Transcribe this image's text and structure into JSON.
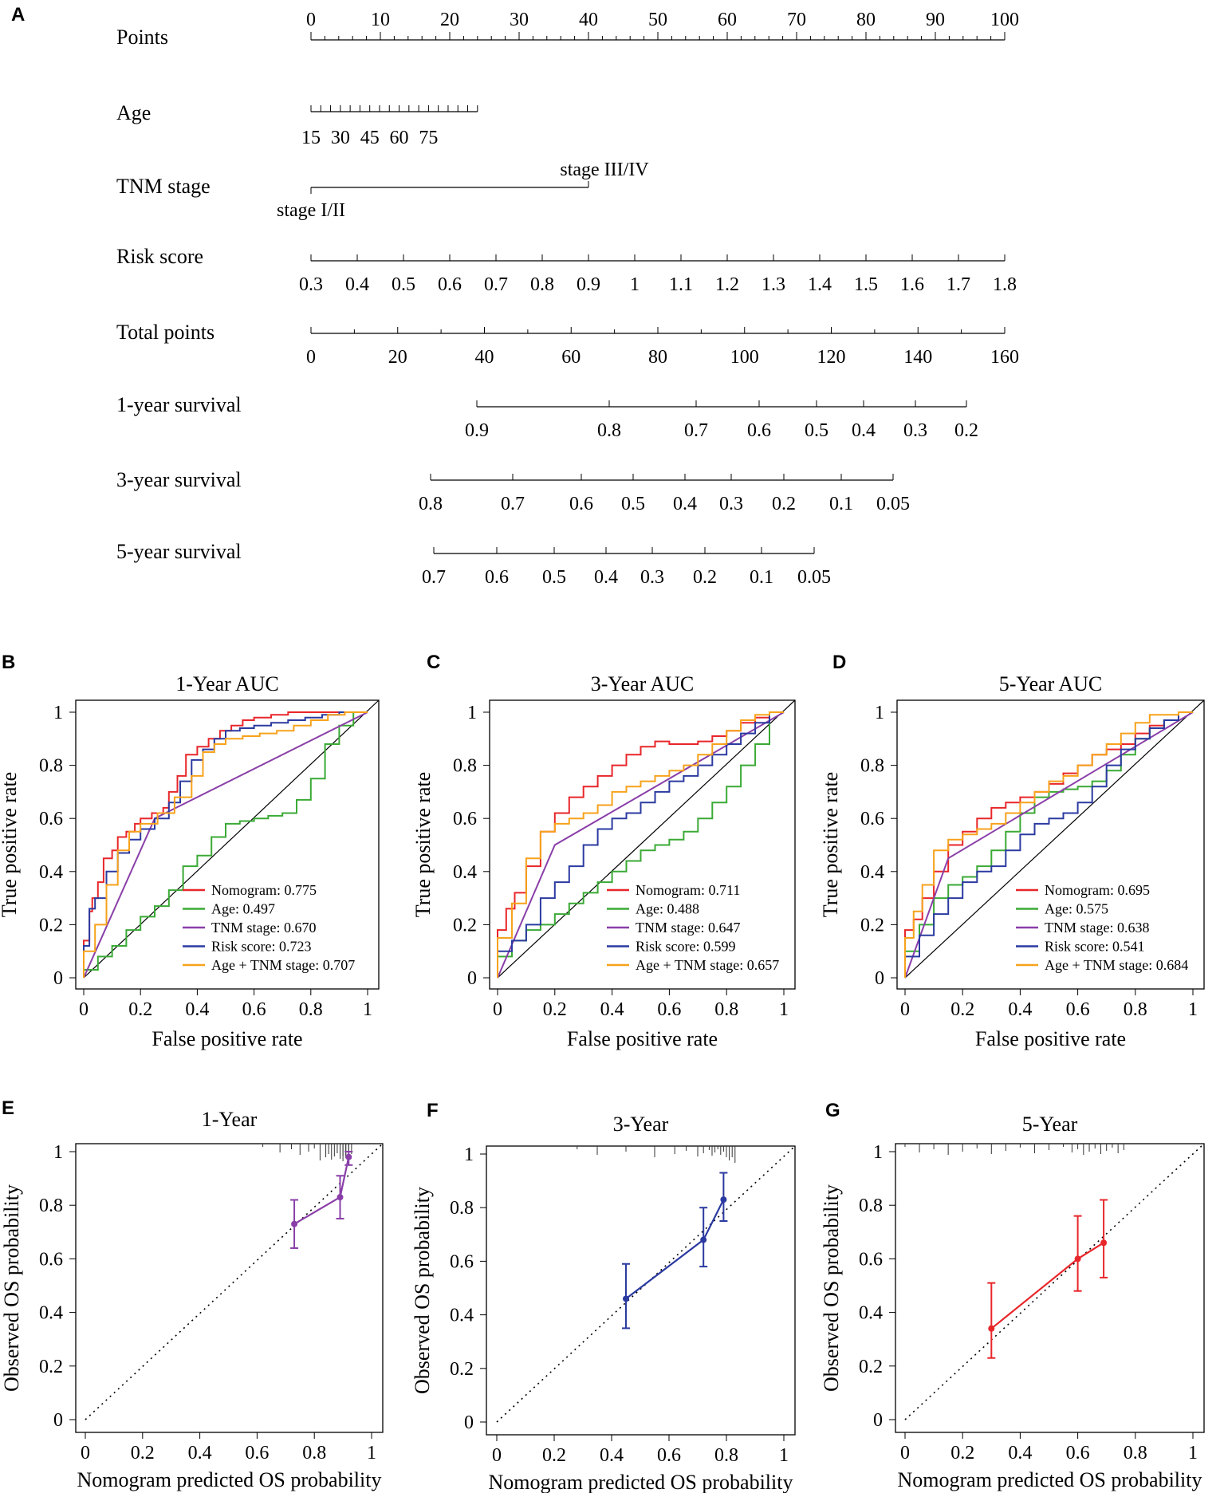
{
  "panel_labels": {
    "A": "A",
    "B": "B",
    "C": "C",
    "D": "D",
    "E": "E",
    "F": "F",
    "G": "G"
  },
  "nomogram": {
    "rows": [
      {
        "name": "Points",
        "ticks": [
          "0",
          "10",
          "20",
          "30",
          "40",
          "50",
          "60",
          "70",
          "80",
          "90",
          "100"
        ],
        "values": [
          0,
          10,
          20,
          30,
          40,
          50,
          60,
          70,
          80,
          90,
          100
        ]
      },
      {
        "name": "Age",
        "ticks": [
          "15",
          "30",
          "45",
          "60",
          "75"
        ],
        "values": [
          15,
          30,
          45,
          60,
          75
        ],
        "range": [
          15,
          100
        ]
      },
      {
        "name": "TNM stage",
        "levels": [
          "stage I/II",
          "stage III/IV"
        ],
        "points": [
          0,
          40
        ]
      },
      {
        "name": "Risk score",
        "ticks": [
          "0.3",
          "0.4",
          "0.5",
          "0.6",
          "0.7",
          "0.8",
          "0.9",
          "1",
          "1.1",
          "1.2",
          "1.3",
          "1.4",
          "1.5",
          "1.6",
          "1.7",
          "1.8"
        ],
        "values": [
          0.3,
          0.4,
          0.5,
          0.6,
          0.7,
          0.8,
          0.9,
          1.0,
          1.1,
          1.2,
          1.3,
          1.4,
          1.5,
          1.6,
          1.7,
          1.8
        ]
      },
      {
        "name": "Total points",
        "ticks": [
          "0",
          "20",
          "40",
          "60",
          "80",
          "100",
          "120",
          "140",
          "160"
        ],
        "values": [
          0,
          20,
          40,
          60,
          80,
          100,
          120,
          140,
          160
        ]
      },
      {
        "name": "1-year survival",
        "ticks": [
          "0.9",
          "0.8",
          "0.7",
          "0.6",
          "0.5",
          "0.4",
          "0.3",
          "0.2"
        ],
        "values": [
          0.9,
          0.8,
          0.7,
          0.6,
          0.5,
          0.4,
          0.3,
          0.2
        ]
      },
      {
        "name": "3-year survival",
        "ticks": [
          "0.8",
          "0.7",
          "0.6",
          "0.5",
          "0.4",
          "0.3",
          "0.2",
          "0.1",
          "0.05"
        ],
        "values": [
          0.8,
          0.7,
          0.6,
          0.5,
          0.4,
          0.3,
          0.2,
          0.1,
          0.05
        ]
      },
      {
        "name": "5-year survival",
        "ticks": [
          "0.7",
          "0.6",
          "0.5",
          "0.4",
          "0.3",
          "0.2",
          "0.1",
          "0.05"
        ],
        "values": [
          0.7,
          0.6,
          0.5,
          0.4,
          0.3,
          0.2,
          0.1,
          0.05
        ]
      }
    ]
  },
  "chart_data": [
    {
      "type": "line",
      "panel": "B",
      "title": "1-Year AUC",
      "xlabel": "False positive rate",
      "ylabel": "True positive rate",
      "xlim": [
        0,
        1
      ],
      "ylim": [
        0,
        1
      ],
      "xticks": [
        "0",
        "0.2",
        "0.4",
        "0.6",
        "0.8",
        "1"
      ],
      "yticks": [
        "0",
        "0.2",
        "0.4",
        "0.6",
        "0.8",
        "1"
      ],
      "legend_position": "bottom-right",
      "series": [
        {
          "name": "Nomogram",
          "label": "Nomogram: 0.775",
          "auc": 0.775,
          "color": "#e8262a",
          "x": [
            0,
            0.02,
            0.03,
            0.05,
            0.07,
            0.1,
            0.12,
            0.15,
            0.18,
            0.2,
            0.24,
            0.28,
            0.3,
            0.33,
            0.36,
            0.4,
            0.44,
            0.48,
            0.52,
            0.56,
            0.6,
            0.66,
            0.72,
            0.78,
            0.84,
            0.9,
            0.95,
            1
          ],
          "y": [
            0,
            0.14,
            0.25,
            0.3,
            0.36,
            0.45,
            0.48,
            0.53,
            0.55,
            0.58,
            0.6,
            0.62,
            0.64,
            0.7,
            0.76,
            0.84,
            0.87,
            0.9,
            0.93,
            0.95,
            0.97,
            0.98,
            0.99,
            1,
            1,
            1,
            1,
            1
          ]
        },
        {
          "name": "Age",
          "label": "Age: 0.497",
          "auc": 0.497,
          "color": "#3aaa35",
          "x": [
            0,
            0.05,
            0.1,
            0.15,
            0.2,
            0.25,
            0.3,
            0.35,
            0.4,
            0.45,
            0.5,
            0.55,
            0.6,
            0.65,
            0.7,
            0.75,
            0.8,
            0.85,
            0.9,
            0.95,
            1
          ],
          "y": [
            0,
            0.03,
            0.08,
            0.12,
            0.18,
            0.23,
            0.27,
            0.33,
            0.42,
            0.46,
            0.53,
            0.58,
            0.59,
            0.6,
            0.61,
            0.62,
            0.67,
            0.75,
            0.88,
            0.95,
            1
          ]
        },
        {
          "name": "TNM stage",
          "label": "TNM stage: 0.670",
          "auc": 0.67,
          "color": "#8a3fa8",
          "x": [
            0,
            0.25,
            1
          ],
          "y": [
            0,
            0.6,
            1
          ]
        },
        {
          "name": "Risk score",
          "label": "Risk score: 0.723",
          "auc": 0.723,
          "color": "#2b3aa0",
          "x": [
            0,
            0.02,
            0.04,
            0.08,
            0.12,
            0.16,
            0.2,
            0.25,
            0.3,
            0.34,
            0.38,
            0.42,
            0.46,
            0.5,
            0.55,
            0.6,
            0.66,
            0.72,
            0.78,
            0.84,
            0.9,
            0.95,
            1
          ],
          "y": [
            0,
            0.12,
            0.26,
            0.3,
            0.4,
            0.47,
            0.52,
            0.56,
            0.6,
            0.66,
            0.74,
            0.82,
            0.86,
            0.9,
            0.93,
            0.94,
            0.95,
            0.96,
            0.97,
            0.98,
            0.99,
            1,
            1
          ]
        },
        {
          "name": "Age + TNM stage",
          "label": "Age + TNM stage: 0.707",
          "auc": 0.707,
          "color": "#f7a21b",
          "x": [
            0,
            0.04,
            0.08,
            0.12,
            0.16,
            0.2,
            0.26,
            0.32,
            0.38,
            0.42,
            0.46,
            0.5,
            0.56,
            0.62,
            0.68,
            0.74,
            0.8,
            0.86,
            0.92,
            0.96,
            1
          ],
          "y": [
            0,
            0.1,
            0.2,
            0.35,
            0.48,
            0.55,
            0.58,
            0.62,
            0.68,
            0.76,
            0.85,
            0.88,
            0.9,
            0.91,
            0.92,
            0.93,
            0.95,
            0.97,
            0.99,
            1,
            1
          ]
        }
      ]
    },
    {
      "type": "line",
      "panel": "C",
      "title": "3-Year AUC",
      "xlabel": "False positive rate",
      "ylabel": "True positive rate",
      "xlim": [
        0,
        1
      ],
      "ylim": [
        0,
        1
      ],
      "xticks": [
        "0",
        "0.2",
        "0.4",
        "0.6",
        "0.8",
        "1"
      ],
      "yticks": [
        "0",
        "0.2",
        "0.4",
        "0.6",
        "0.8",
        "1"
      ],
      "legend_position": "bottom-right",
      "series": [
        {
          "name": "Nomogram",
          "label": "Nomogram: 0.711",
          "auc": 0.711,
          "color": "#e8262a",
          "x": [
            0,
            0.03,
            0.06,
            0.1,
            0.15,
            0.2,
            0.25,
            0.3,
            0.35,
            0.4,
            0.45,
            0.5,
            0.55,
            0.6,
            0.65,
            0.7,
            0.75,
            0.8,
            0.85,
            0.9,
            0.95,
            1
          ],
          "y": [
            0,
            0.18,
            0.26,
            0.32,
            0.42,
            0.55,
            0.62,
            0.68,
            0.72,
            0.76,
            0.8,
            0.84,
            0.87,
            0.89,
            0.88,
            0.88,
            0.89,
            0.91,
            0.93,
            0.96,
            0.98,
            1
          ]
        },
        {
          "name": "Age",
          "label": "Age: 0.488",
          "auc": 0.488,
          "color": "#3aaa35",
          "x": [
            0,
            0.05,
            0.1,
            0.15,
            0.2,
            0.25,
            0.3,
            0.35,
            0.4,
            0.45,
            0.5,
            0.55,
            0.6,
            0.65,
            0.7,
            0.75,
            0.8,
            0.85,
            0.9,
            0.95,
            1
          ],
          "y": [
            0,
            0.08,
            0.14,
            0.18,
            0.2,
            0.24,
            0.28,
            0.32,
            0.36,
            0.4,
            0.44,
            0.48,
            0.5,
            0.52,
            0.55,
            0.6,
            0.66,
            0.72,
            0.8,
            0.88,
            1
          ]
        },
        {
          "name": "TNM stage",
          "label": "TNM stage: 0.647",
          "auc": 0.647,
          "color": "#8a3fa8",
          "x": [
            0,
            0.2,
            1
          ],
          "y": [
            0,
            0.5,
            1
          ]
        },
        {
          "name": "Risk score",
          "label": "Risk score: 0.599",
          "auc": 0.599,
          "color": "#2b3aa0",
          "x": [
            0,
            0.05,
            0.1,
            0.15,
            0.2,
            0.25,
            0.3,
            0.35,
            0.4,
            0.45,
            0.5,
            0.55,
            0.6,
            0.65,
            0.7,
            0.75,
            0.8,
            0.85,
            0.9,
            0.95,
            1
          ],
          "y": [
            0,
            0.1,
            0.14,
            0.2,
            0.3,
            0.36,
            0.42,
            0.5,
            0.56,
            0.6,
            0.62,
            0.66,
            0.7,
            0.74,
            0.76,
            0.8,
            0.84,
            0.88,
            0.92,
            0.96,
            1
          ]
        },
        {
          "name": "Age + TNM stage",
          "label": "Age + TNM stage: 0.657",
          "auc": 0.657,
          "color": "#f7a21b",
          "x": [
            0,
            0.05,
            0.1,
            0.15,
            0.2,
            0.25,
            0.3,
            0.35,
            0.4,
            0.45,
            0.5,
            0.55,
            0.6,
            0.65,
            0.7,
            0.75,
            0.8,
            0.85,
            0.9,
            0.95,
            1
          ],
          "y": [
            0,
            0.15,
            0.28,
            0.45,
            0.55,
            0.58,
            0.6,
            0.62,
            0.65,
            0.7,
            0.72,
            0.74,
            0.76,
            0.78,
            0.8,
            0.84,
            0.88,
            0.93,
            0.97,
            0.99,
            1
          ]
        }
      ]
    },
    {
      "type": "line",
      "panel": "D",
      "title": "5-Year AUC",
      "xlabel": "False positive rate",
      "ylabel": "True positive rate",
      "xlim": [
        0,
        1
      ],
      "ylim": [
        0,
        1
      ],
      "xticks": [
        "0",
        "0.2",
        "0.4",
        "0.6",
        "0.8",
        "1"
      ],
      "yticks": [
        "0",
        "0.2",
        "0.4",
        "0.6",
        "0.8",
        "1"
      ],
      "legend_position": "bottom-right",
      "series": [
        {
          "name": "Nomogram",
          "label": "Nomogram: 0.695",
          "auc": 0.695,
          "color": "#e8262a",
          "x": [
            0,
            0.03,
            0.06,
            0.1,
            0.15,
            0.2,
            0.25,
            0.3,
            0.35,
            0.4,
            0.45,
            0.5,
            0.55,
            0.6,
            0.65,
            0.7,
            0.75,
            0.8,
            0.85,
            0.9,
            0.95,
            1
          ],
          "y": [
            0,
            0.18,
            0.22,
            0.3,
            0.4,
            0.5,
            0.55,
            0.6,
            0.64,
            0.66,
            0.68,
            0.7,
            0.73,
            0.77,
            0.8,
            0.84,
            0.86,
            0.88,
            0.92,
            0.95,
            0.97,
            1
          ]
        },
        {
          "name": "Age",
          "label": "Age: 0.575",
          "auc": 0.575,
          "color": "#3aaa35",
          "x": [
            0,
            0.05,
            0.1,
            0.15,
            0.2,
            0.25,
            0.3,
            0.35,
            0.4,
            0.45,
            0.5,
            0.55,
            0.6,
            0.65,
            0.7,
            0.75,
            0.8,
            0.85,
            0.9,
            0.95,
            1
          ],
          "y": [
            0,
            0.1,
            0.2,
            0.3,
            0.35,
            0.38,
            0.42,
            0.48,
            0.55,
            0.62,
            0.68,
            0.7,
            0.71,
            0.72,
            0.74,
            0.78,
            0.84,
            0.9,
            0.94,
            0.97,
            1
          ]
        },
        {
          "name": "TNM stage",
          "label": "TNM stage: 0.638",
          "auc": 0.638,
          "color": "#8a3fa8",
          "x": [
            0,
            0.15,
            1
          ],
          "y": [
            0,
            0.45,
            1
          ]
        },
        {
          "name": "Risk score",
          "label": "Risk score: 0.541",
          "auc": 0.541,
          "color": "#2b3aa0",
          "x": [
            0,
            0.05,
            0.1,
            0.15,
            0.2,
            0.25,
            0.3,
            0.35,
            0.4,
            0.45,
            0.5,
            0.55,
            0.6,
            0.65,
            0.7,
            0.75,
            0.8,
            0.85,
            0.9,
            0.95,
            1
          ],
          "y": [
            0,
            0.08,
            0.16,
            0.24,
            0.3,
            0.36,
            0.4,
            0.42,
            0.48,
            0.54,
            0.58,
            0.6,
            0.62,
            0.66,
            0.72,
            0.8,
            0.86,
            0.9,
            0.94,
            0.97,
            1
          ]
        },
        {
          "name": "Age + TNM stage",
          "label": "Age + TNM stage: 0.684",
          "auc": 0.684,
          "color": "#f7a21b",
          "x": [
            0,
            0.03,
            0.06,
            0.1,
            0.15,
            0.2,
            0.25,
            0.3,
            0.35,
            0.4,
            0.45,
            0.5,
            0.55,
            0.6,
            0.65,
            0.7,
            0.75,
            0.8,
            0.85,
            0.9,
            0.95,
            1
          ],
          "y": [
            0,
            0.15,
            0.25,
            0.35,
            0.48,
            0.52,
            0.54,
            0.56,
            0.58,
            0.62,
            0.66,
            0.7,
            0.74,
            0.76,
            0.8,
            0.84,
            0.88,
            0.92,
            0.96,
            0.99,
            0.99,
            1
          ]
        }
      ]
    },
    {
      "type": "scatter",
      "panel": "E",
      "title": "1-Year",
      "xlabel": "Nomogram predicted OS probability",
      "ylabel": "Observed OS probability",
      "xlim": [
        0,
        1
      ],
      "ylim": [
        0,
        1
      ],
      "xticks": [
        "0",
        "0.2",
        "0.4",
        "0.6",
        "0.8",
        "1"
      ],
      "yticks": [
        "0",
        "0.2",
        "0.4",
        "0.6",
        "0.8",
        "1"
      ],
      "color": "#8a3fa8",
      "points": {
        "x": [
          0.73,
          0.89,
          0.92
        ],
        "y": [
          0.73,
          0.83,
          0.98
        ],
        "lower": [
          0.64,
          0.75,
          0.95
        ],
        "upper": [
          0.82,
          0.91,
          1.0
        ]
      }
    },
    {
      "type": "scatter",
      "panel": "F",
      "title": "3-Year",
      "xlabel": "Nomogram predicted OS probability",
      "ylabel": "Observed OS probability",
      "xlim": [
        0,
        1
      ],
      "ylim": [
        0,
        1
      ],
      "xticks": [
        "0",
        "0.2",
        "0.4",
        "0.6",
        "0.8",
        "1"
      ],
      "yticks": [
        "0",
        "0.2",
        "0.4",
        "0.6",
        "0.8",
        "1"
      ],
      "color": "#2b3aa0",
      "points": {
        "x": [
          0.45,
          0.72,
          0.79
        ],
        "y": [
          0.46,
          0.68,
          0.83
        ],
        "lower": [
          0.35,
          0.58,
          0.75
        ],
        "upper": [
          0.59,
          0.8,
          0.93
        ]
      }
    },
    {
      "type": "scatter",
      "panel": "G",
      "title": "5-Year",
      "xlabel": "Nomogram predicted OS probability",
      "ylabel": "Observed OS probability",
      "xlim": [
        0,
        1
      ],
      "ylim": [
        0,
        1
      ],
      "xticks": [
        "0",
        "0.2",
        "0.4",
        "0.6",
        "0.8",
        "1"
      ],
      "yticks": [
        "0",
        "0.2",
        "0.4",
        "0.6",
        "0.8",
        "1"
      ],
      "color": "#e8262a",
      "points": {
        "x": [
          0.3,
          0.6,
          0.69
        ],
        "y": [
          0.34,
          0.6,
          0.66
        ],
        "lower": [
          0.23,
          0.48,
          0.53
        ],
        "upper": [
          0.51,
          0.76,
          0.82
        ]
      }
    }
  ]
}
